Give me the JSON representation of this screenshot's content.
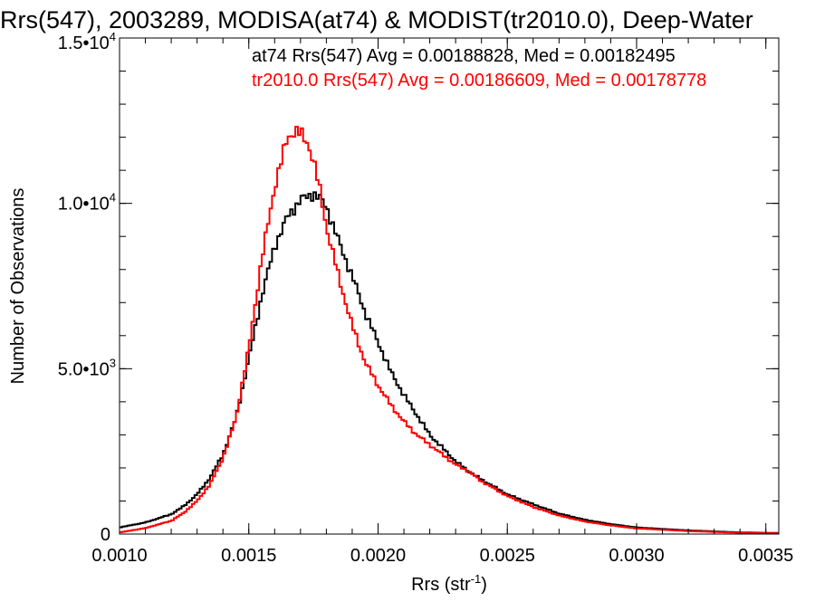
{
  "chart_data": {
    "type": "line",
    "title": "Rrs(547), 2003289, MODISA(at74) & MODIST(tr2010.0), Deep-Water",
    "xlabel_main": "Rrs (str",
    "xlabel_sup": "-1",
    "xlabel_close": ")",
    "ylabel": "Number of Observations",
    "xlim": [
      0.001,
      0.00355
    ],
    "ylim": [
      0,
      15000
    ],
    "x_ticks": [
      {
        "value": 0.001,
        "label": "0.0010"
      },
      {
        "value": 0.0015,
        "label": "0.0015"
      },
      {
        "value": 0.002,
        "label": "0.0020"
      },
      {
        "value": 0.0025,
        "label": "0.0025"
      },
      {
        "value": 0.003,
        "label": "0.0030"
      },
      {
        "value": 0.0035,
        "label": "0.0035"
      }
    ],
    "y_ticks": [
      {
        "value": 0,
        "label": "0",
        "sup": ""
      },
      {
        "value": 5000,
        "label": "5.0•10",
        "sup": "3"
      },
      {
        "value": 10000,
        "label": "1.0•10",
        "sup": "4"
      },
      {
        "value": 15000,
        "label": "1.5•10",
        "sup": "4"
      }
    ],
    "annotations": [
      {
        "text": "at74 Rrs(547) Avg = 0.00188828, Med = 0.00182495",
        "color": "#000000"
      },
      {
        "text": "tr2010.0 Rrs(547) Avg = 0.00186609, Med = 0.00178778",
        "color": "#ff0000"
      }
    ],
    "series": [
      {
        "color": "#000000",
        "x": [
          0.001,
          0.0011,
          0.0012,
          0.00125,
          0.0013,
          0.00135,
          0.0014,
          0.00145,
          0.0015,
          0.00155,
          0.0016,
          0.00165,
          0.0017,
          0.00175,
          0.00178,
          0.0018,
          0.00185,
          0.0019,
          0.00195,
          0.002,
          0.00205,
          0.0021,
          0.00215,
          0.0022,
          0.00225,
          0.0023,
          0.00235,
          0.0024,
          0.0025,
          0.0026,
          0.0027,
          0.0028,
          0.0029,
          0.003,
          0.0032,
          0.0034,
          0.00355
        ],
        "y": [
          200,
          350,
          600,
          850,
          1200,
          1700,
          2400,
          3500,
          5300,
          7200,
          8700,
          9600,
          10100,
          10300,
          10100,
          9900,
          8800,
          7800,
          6700,
          5800,
          4900,
          4200,
          3600,
          3000,
          2600,
          2200,
          1900,
          1650,
          1200,
          900,
          620,
          430,
          300,
          200,
          110,
          50,
          30
        ]
      },
      {
        "color": "#ff0000",
        "x": [
          0.001,
          0.0011,
          0.0012,
          0.00125,
          0.0013,
          0.00135,
          0.0014,
          0.00145,
          0.0015,
          0.00155,
          0.0016,
          0.00163,
          0.00165,
          0.00168,
          0.0017,
          0.00173,
          0.00175,
          0.00178,
          0.0018,
          0.00185,
          0.0019,
          0.00195,
          0.002,
          0.00205,
          0.0021,
          0.00215,
          0.0022,
          0.00225,
          0.0023,
          0.00235,
          0.0024,
          0.0025,
          0.0026,
          0.0027,
          0.0028,
          0.0029,
          0.003,
          0.0032,
          0.0034,
          0.00355
        ],
        "y": [
          50,
          180,
          400,
          650,
          1000,
          1500,
          2300,
          3500,
          5600,
          8300,
          10500,
          11400,
          12000,
          12200,
          12100,
          11800,
          11300,
          10200,
          9300,
          7700,
          6300,
          5200,
          4500,
          3900,
          3400,
          3000,
          2700,
          2400,
          2100,
          1900,
          1600,
          1150,
          820,
          560,
          380,
          260,
          170,
          90,
          40,
          20
        ]
      }
    ]
  }
}
